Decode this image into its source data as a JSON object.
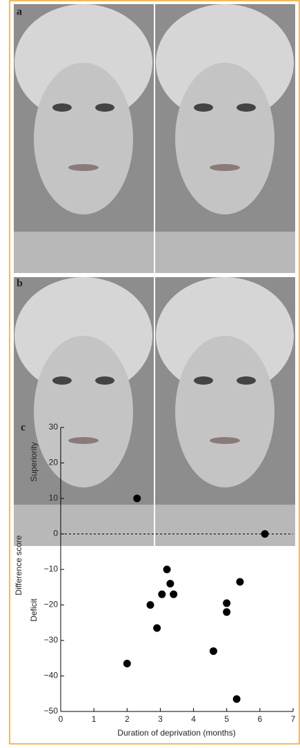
{
  "panels": [
    {
      "label": "a"
    },
    {
      "label": "b"
    }
  ],
  "chart_data": {
    "type": "scatter",
    "panel_label": "c",
    "xlabel": "Duration of deprivation (months)",
    "ylabel": "Difference score",
    "annotations": [
      "Superiority",
      "Deficit"
    ],
    "x": [
      2.3,
      6.15,
      3.2,
      3.3,
      5.4,
      2.7,
      3.05,
      3.4,
      5.0,
      5.0,
      2.9,
      4.6,
      2.0,
      5.3
    ],
    "values": [
      10,
      0,
      -10,
      -14,
      -13.5,
      -20,
      -17,
      -17,
      -19.5,
      -22,
      -26.5,
      -33,
      -36.5,
      -46.5
    ],
    "color": "#000000",
    "xlim": [
      0,
      7
    ],
    "xticks": [
      0,
      1,
      2,
      3,
      4,
      5,
      6,
      7
    ],
    "ylim": [
      -50,
      30
    ],
    "yticks": [
      {
        "value": -50,
        "label": "−50"
      },
      {
        "value": -40,
        "label": "−40"
      },
      {
        "value": -30,
        "label": "−30"
      },
      {
        "value": -20,
        "label": "−20"
      },
      {
        "value": -10,
        "label": "−10"
      },
      0,
      10,
      20,
      30
    ],
    "reference_line": 0
  }
}
